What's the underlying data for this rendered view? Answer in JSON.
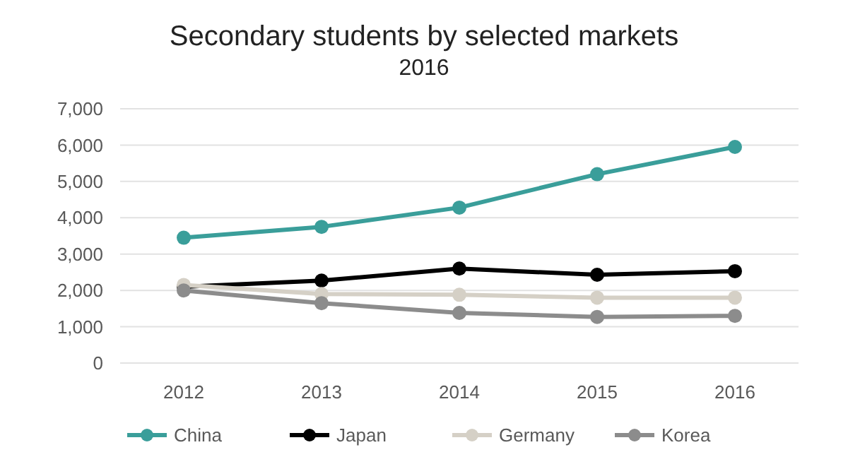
{
  "chart_data": {
    "type": "line",
    "title": "Secondary students by selected markets",
    "subtitle": "2016",
    "categories": [
      "2012",
      "2013",
      "2014",
      "2015",
      "2016"
    ],
    "series": [
      {
        "name": "China",
        "color": "#3a9e9a",
        "values": [
          3450,
          3750,
          4280,
          5200,
          5950
        ]
      },
      {
        "name": "Japan",
        "color": "#000000",
        "values": [
          2100,
          2270,
          2600,
          2430,
          2530
        ]
      },
      {
        "name": "Germany",
        "color": "#d5d0c6",
        "values": [
          2150,
          1900,
          1880,
          1800,
          1800
        ]
      },
      {
        "name": "Korea",
        "color": "#8c8c8c",
        "values": [
          2000,
          1650,
          1380,
          1270,
          1300
        ]
      }
    ],
    "ylim": [
      0,
      7000
    ],
    "yticks": [
      {
        "value": 0,
        "label": "0"
      },
      {
        "value": 1000,
        "label": "1,000"
      },
      {
        "value": 2000,
        "label": "2,000"
      },
      {
        "value": 3000,
        "label": "3,000"
      },
      {
        "value": 4000,
        "label": "4,000"
      },
      {
        "value": 5000,
        "label": "5,000"
      },
      {
        "value": 6000,
        "label": "6,000"
      },
      {
        "value": 7000,
        "label": "7,000"
      }
    ],
    "grid": "y",
    "legend": "bottom",
    "marker": "circle",
    "line_style": "solid"
  }
}
